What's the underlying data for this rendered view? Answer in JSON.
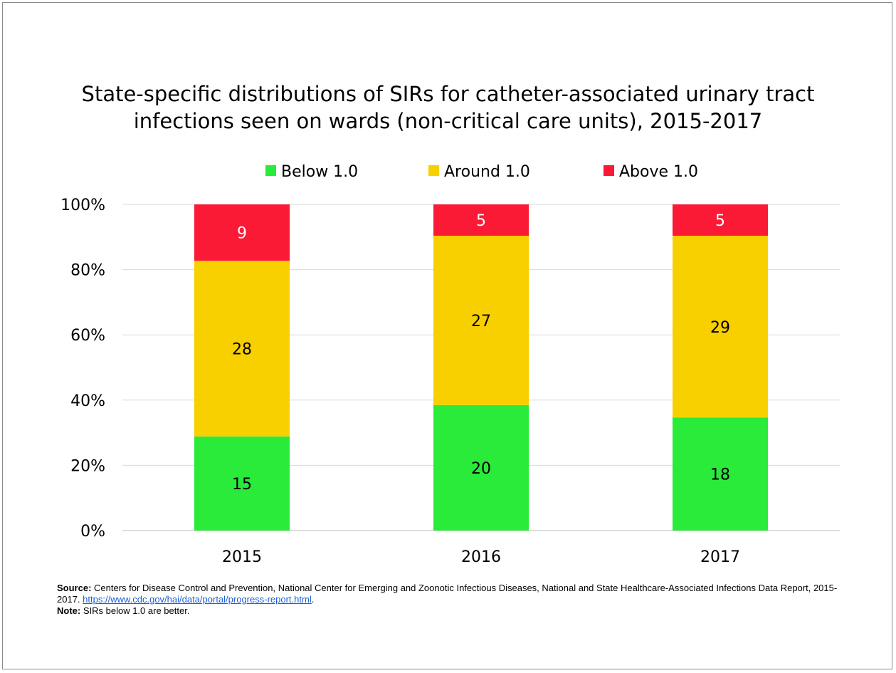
{
  "chart_data": {
    "type": "bar",
    "stacked": true,
    "normalized_percent": true,
    "title_lines": [
      "State-specific distributions of SIRs for catheter-associated urinary tract",
      "infections seen on wards (non-critical care units), 2015-2017"
    ],
    "categories": [
      "2015",
      "2016",
      "2017"
    ],
    "series": [
      {
        "name": "Below 1.0",
        "color": "#2aea3a",
        "values": [
          15,
          20,
          18
        ]
      },
      {
        "name": "Around 1.0",
        "color": "#f8d000",
        "values": [
          28,
          27,
          29
        ]
      },
      {
        "name": "Above 1.0",
        "color": "#fa1a36",
        "values": [
          9,
          5,
          5
        ]
      }
    ],
    "label_colors": [
      "#000000",
      "#000000",
      "#ffffff"
    ],
    "y_ticks": [
      "0%",
      "20%",
      "40%",
      "60%",
      "80%",
      "100%"
    ],
    "ylim": [
      0,
      100
    ],
    "grid": true,
    "legend_position": "top-center"
  },
  "footer": {
    "source_label": "Source:",
    "source_text": "Centers for Disease Control and Prevention, National Center for Emerging and Zoonotic Infectious Diseases, National and State Healthcare-Associated Infections Data Report, 2015-2017.",
    "source_link": "https://www.cdc.gov/hai/data/portal/progress-report.html",
    "source_end": ".",
    "note_label": "Note:",
    "note_text": "SIRs below 1.0 are better."
  }
}
